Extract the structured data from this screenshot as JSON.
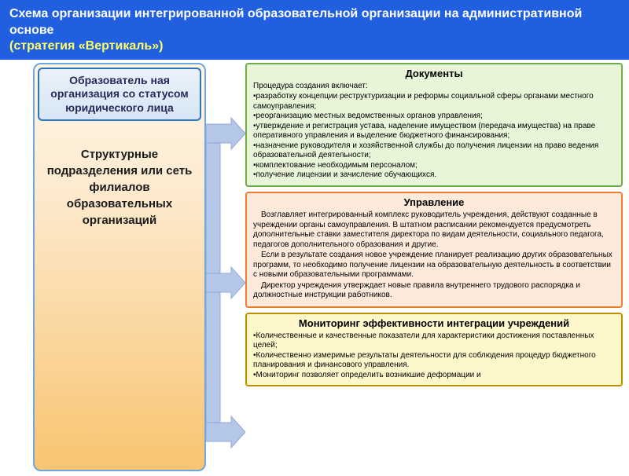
{
  "header": {
    "bg_color": "#1f5fe0",
    "title": "Схема организации интегрированной образовательной организации на административной основе",
    "title_color": "#ffffff",
    "subtitle": "(стратегия «Вертикаль»)",
    "subtitle_color": "#ffff66"
  },
  "left": {
    "top_box": "Образователь\nная организация со статусом юридического лица",
    "bottom_box": "Структурные подразделения или сеть филиалов образовательных организаций",
    "border_color": "#6fa8dc",
    "gradient_top": "#fef5e7",
    "gradient_bottom": "#f8c471",
    "top_box_border": "#2e75b6",
    "top_box_bg": "#eaf1fa"
  },
  "arrows": {
    "color": "#b4c7e7",
    "stroke": "#8faadc"
  },
  "panels": [
    {
      "title": "Документы",
      "bg": "#e8f5d8",
      "border": "#70ad47",
      "intro": "Процедура создания включает:",
      "bullets": [
        "разработку концепции реструктуризации и реформы социальной сферы органами местного самоуправления;",
        "реорганизацию местных ведомственных органов управления;",
        "утверждение и регистрация устава, наделение имуществом (передача имущества) на праве оперативного управления и выделение бюджетного финансирования;",
        "назначение руководителя и хозяйственной службы до получения лицензии на право ведения образовательной деятельности;",
        "комплектование необходимым персоналом;",
        "получение лицензии и зачисление обучающихся."
      ]
    },
    {
      "title": "Управление",
      "bg": "#fdeada",
      "border": "#ed7d31",
      "paras": [
        "Возглавляет интегрированный комплекс руководитель учреждения, действуют созданные в учреждении органы самоуправления. В штатном расписании рекомендуется предусмотреть дополнительные ставки заместителя директора по видам деятельности, социального педагога, педагогов дополнительного образования и другие.",
        "Если в результате создания новое учреждение планирует реализацию других образовательных программ, то необходимо получение лицензии на образовательную деятельность в соответствии с новыми образовательными программами.",
        "Директор учреждения утверждает новые правила внутреннего трудового распорядка и должностные инструкции работников."
      ]
    },
    {
      "title": "Мониторинг эффективности интеграции учреждений",
      "bg": "#fff7cc",
      "border": "#bf9000",
      "bullets": [
        "Количественные и качественные показатели для характеристики достижения поставленных целей;",
        "Количественно измеримые результаты деятельности для соблюдения процедур бюджетного планирования и финансового управления.",
        "Мониторинг позволяет определить возникшие деформации и"
      ]
    }
  ]
}
